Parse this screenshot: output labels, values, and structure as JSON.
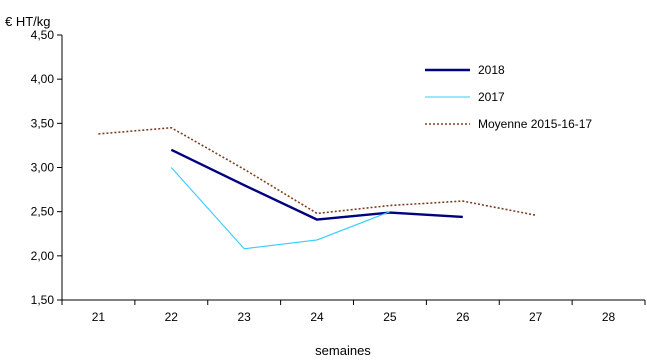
{
  "chart_data": {
    "type": "line",
    "ylabel": "€ HT/kg",
    "xlabel": "semaines",
    "categories": [
      "21",
      "22",
      "23",
      "24",
      "25",
      "26",
      "27",
      "28"
    ],
    "ylim": [
      1.5,
      4.5
    ],
    "yticks": [
      1.5,
      2.0,
      2.5,
      3.0,
      3.5,
      4.0,
      4.5
    ],
    "ytick_labels": [
      "1,50",
      "2,00",
      "2,50",
      "3,00",
      "3,50",
      "4,00",
      "4,50"
    ],
    "grid": false,
    "legend_position": "top-right",
    "series": [
      {
        "name": "2018",
        "color": "#000080",
        "style": "solid",
        "values": [
          null,
          3.2,
          2.8,
          2.41,
          2.49,
          2.44,
          null,
          null
        ]
      },
      {
        "name": "2017",
        "color": "#33ccff",
        "style": "solid",
        "values": [
          null,
          3.0,
          2.08,
          2.18,
          2.5,
          null,
          null,
          null
        ]
      },
      {
        "name": "Moyenne 2015-16-17",
        "color": "#7f3f1f",
        "style": "dotted",
        "values": [
          3.38,
          3.45,
          2.98,
          2.48,
          2.57,
          2.62,
          2.46,
          null
        ]
      }
    ]
  }
}
